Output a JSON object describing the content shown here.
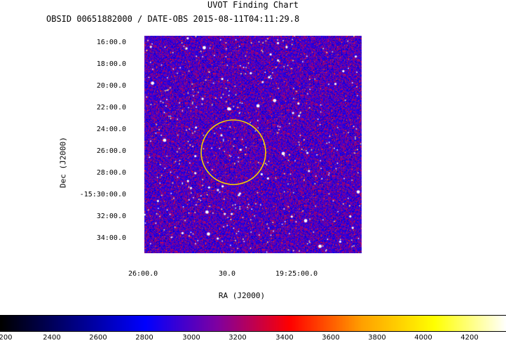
{
  "header": {
    "title": "UVOT Finding Chart",
    "subtitle": "OBSID 00651882000 / DATE-OBS 2015-08-11T04:11:29.8"
  },
  "axes": {
    "y_title": "Dec (J2000)",
    "x_title": "RA (J2000)",
    "y_ticks": [
      "16:00.0",
      "18:00.0",
      "20:00.0",
      "22:00.0",
      "24:00.0",
      "26:00.0",
      "28:00.0",
      "-15:30:00.0",
      "32:00.0",
      "34:00.0"
    ],
    "x_ticks": [
      "26:00.0",
      "30.0",
      "19:25:00.0"
    ]
  },
  "colorbar": {
    "ticks": [
      "200",
      "2400",
      "2600",
      "2800",
      "3000",
      "3200",
      "3400",
      "3600",
      "3800",
      "4000",
      "4200"
    ],
    "stops": [
      "#000000",
      "#000080",
      "#0000ff",
      "#8000a0",
      "#ff0000",
      "#ffa000",
      "#ffff00",
      "#ffffff"
    ]
  },
  "marker": {
    "shape": "circle",
    "color": "#f5d000"
  }
}
